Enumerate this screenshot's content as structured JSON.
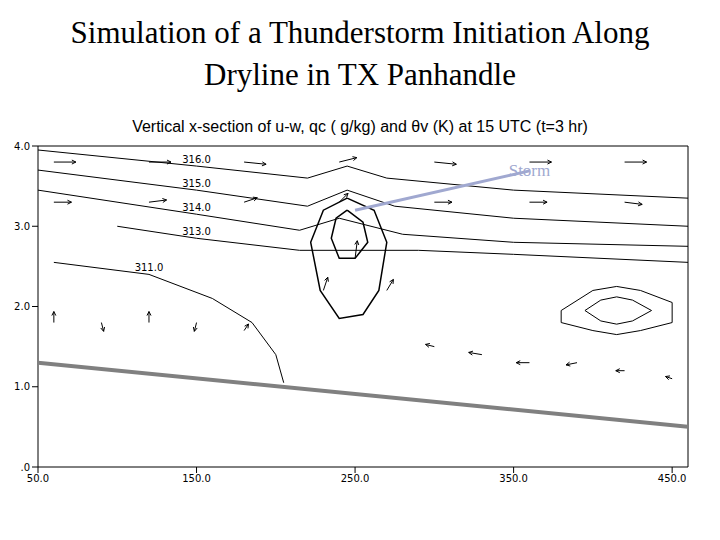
{
  "chart_data": {
    "type": "contour",
    "title": "Simulation of a Thunderstorm Initiation Along Dryline in TX Panhandle",
    "subtitle": "Vertical x-section of u-w, qc ( g/kg) and θv (K) at 15 UTC (t=3 hr)",
    "color": "#000000",
    "xlim": [
      50,
      460
    ],
    "ylim": [
      0,
      4
    ],
    "xticks": [
      {
        "value": 50,
        "label": "50.0"
      },
      {
        "value": 150,
        "label": "150.0"
      },
      {
        "value": 250,
        "label": "250.0"
      },
      {
        "value": 350,
        "label": "350.0"
      },
      {
        "value": 450,
        "label": "450.0"
      }
    ],
    "yticks": [
      {
        "value": 0,
        "label": ".0"
      },
      {
        "value": 1,
        "label": "1.0"
      },
      {
        "value": 2,
        "label": "2.0"
      },
      {
        "value": 3,
        "label": "3.0"
      },
      {
        "value": 4,
        "label": "4.0"
      }
    ],
    "annotation": {
      "text": "Storm",
      "x": 360,
      "y": 3.69,
      "target_x": 250,
      "target_y": 3.2,
      "color": "#a0a8d0"
    },
    "terrain": {
      "x": [
        50,
        460
      ],
      "y": [
        1.3,
        0.5
      ],
      "color": "#808080"
    },
    "theta_v": [
      {
        "label": "316.0",
        "x": [
          50,
          150,
          220,
          245,
          270,
          350,
          460
        ],
        "y": [
          3.95,
          3.75,
          3.6,
          3.75,
          3.6,
          3.45,
          3.35
        ]
      },
      {
        "label": "315.0",
        "x": [
          50,
          150,
          220,
          245,
          275,
          350,
          460
        ],
        "y": [
          3.7,
          3.45,
          3.25,
          3.45,
          3.25,
          3.1,
          3.0
        ]
      },
      {
        "label": "314.0",
        "x": [
          50,
          150,
          215,
          240,
          280,
          350,
          460
        ],
        "y": [
          3.45,
          3.15,
          2.95,
          3.1,
          2.9,
          2.8,
          2.75
        ]
      },
      {
        "label": "313.0",
        "x": [
          100,
          150,
          215,
          290,
          350,
          460
        ],
        "y": [
          3.0,
          2.85,
          2.7,
          2.7,
          2.65,
          2.55
        ]
      },
      {
        "label": "311.0",
        "x": [
          60,
          120,
          160,
          185,
          200,
          205
        ],
        "y": [
          2.55,
          2.4,
          2.1,
          1.8,
          1.4,
          1.05
        ]
      },
      {
        "x": [
          380,
          400,
          415,
          430,
          450,
          450,
          430,
          415,
          400,
          380,
          380
        ],
        "y": [
          1.95,
          2.2,
          2.25,
          2.2,
          2.05,
          1.8,
          1.7,
          1.65,
          1.7,
          1.8,
          1.95
        ]
      },
      {
        "x": [
          395,
          405,
          415,
          425,
          437,
          425,
          415,
          405,
          395
        ],
        "y": [
          1.95,
          2.08,
          2.12,
          2.08,
          1.95,
          1.82,
          1.78,
          1.82,
          1.95
        ]
      }
    ],
    "qc": [
      {
        "x": [
          245,
          262,
          270,
          265,
          255,
          240,
          228,
          222,
          230,
          245
        ],
        "y": [
          3.35,
          3.2,
          2.8,
          2.2,
          1.9,
          1.85,
          2.2,
          2.8,
          3.2,
          3.35
        ]
      },
      {
        "x": [
          245,
          255,
          258,
          250,
          240,
          235,
          238,
          245
        ],
        "y": [
          3.2,
          3.05,
          2.8,
          2.6,
          2.6,
          2.85,
          3.1,
          3.2
        ]
      }
    ],
    "wind": {
      "x": [
        60,
        120,
        180,
        240,
        300,
        360,
        420,
        60,
        120,
        180,
        240,
        300,
        360,
        420,
        60,
        90,
        120,
        150,
        180,
        230,
        250,
        270,
        300,
        330,
        360,
        390,
        420,
        450
      ],
      "y": [
        3.8,
        3.8,
        3.8,
        3.8,
        3.8,
        3.8,
        3.8,
        3.3,
        3.3,
        3.3,
        3.3,
        3.3,
        3.3,
        3.3,
        1.8,
        1.8,
        1.8,
        1.8,
        1.7,
        2.2,
        2.6,
        2.2,
        1.5,
        1.4,
        1.3,
        1.3,
        1.2,
        1.1
      ],
      "u": [
        10,
        10,
        10,
        8,
        10,
        10,
        10,
        8,
        8,
        6,
        4,
        8,
        8,
        8,
        0,
        1,
        0,
        -1,
        2,
        2,
        1,
        3,
        -4,
        -6,
        -6,
        -5,
        -4,
        -3
      ],
      "w": [
        0,
        0,
        -1,
        2,
        -1,
        0,
        0,
        0,
        1,
        2,
        4,
        0,
        0,
        -1,
        5,
        -4,
        5,
        -4,
        3,
        6,
        8,
        5,
        1,
        1,
        0,
        -1,
        0,
        1
      ]
    }
  }
}
